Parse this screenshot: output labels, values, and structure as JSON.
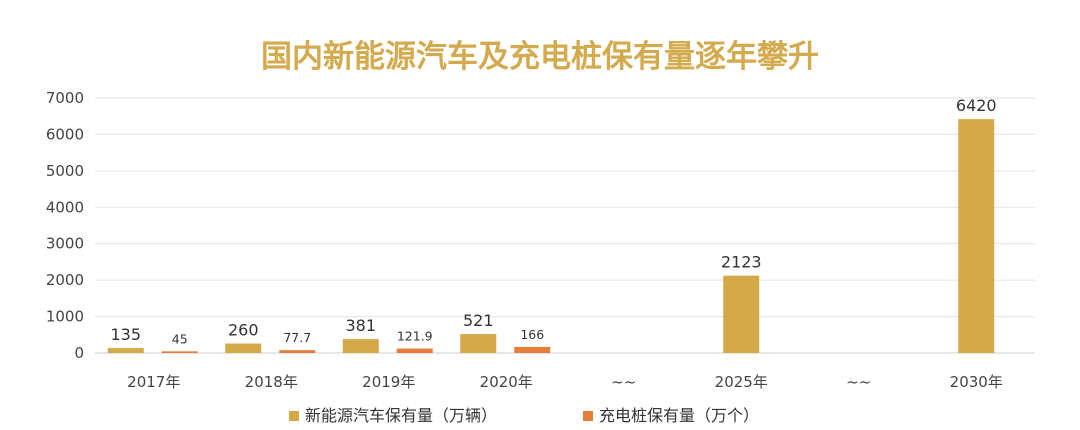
{
  "chart_data": {
    "type": "bar",
    "title": "国内新能源汽车及充电桩保有量逐年攀升",
    "categories": [
      "2017年",
      "2018年",
      "2019年",
      "2020年",
      "~~",
      "2025年",
      "~~",
      "2030年"
    ],
    "series": [
      {
        "name": "新能源汽车保有量（万辆）",
        "color": "#d4aa48",
        "values": [
          135,
          260,
          381,
          521,
          null,
          2123,
          null,
          6420
        ],
        "labels": [
          "135",
          "260",
          "381",
          "521",
          "",
          "2123",
          "",
          "6420"
        ]
      },
      {
        "name": "充电桩保有量（万个）",
        "color": "#e77d3a",
        "values": [
          45,
          77.7,
          121.9,
          166,
          null,
          null,
          null,
          null
        ],
        "labels": [
          "45",
          "77.7",
          "121.9",
          "166",
          "",
          "",
          "",
          ""
        ]
      }
    ],
    "yticks": [
      "0",
      "1000",
      "2000",
      "3000",
      "4000",
      "5000",
      "6000",
      "7000"
    ],
    "ylim": [
      0,
      7000
    ],
    "grid": true,
    "legend_position": "bottom"
  }
}
